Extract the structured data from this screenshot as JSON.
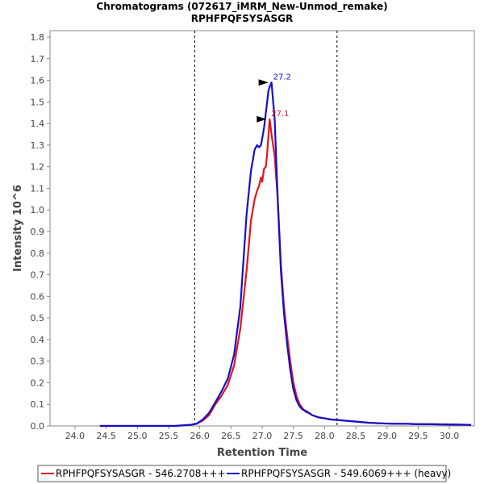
{
  "chart_data": {
    "type": "line",
    "title": "Chromatograms (072617_iMRM_New-Unmod_remake)",
    "subtitle": "RPHFPQFSYSASGR",
    "xlabel": "Retention Time",
    "ylabel": "Intensity 10^6",
    "xlim": [
      23.6,
      30.4
    ],
    "ylim": [
      0,
      1.83
    ],
    "xticks": [
      "24.0",
      "24.5",
      "25.0",
      "25.5",
      "26.0",
      "26.5",
      "27.0",
      "27.5",
      "28.0",
      "28.5",
      "29.0",
      "29.5",
      "30.0"
    ],
    "yticks": [
      "0.0",
      "0.1",
      "0.2",
      "0.3",
      "0.4",
      "0.5",
      "0.6",
      "0.7",
      "0.8",
      "0.9",
      "1.0",
      "1.1",
      "1.2",
      "1.3",
      "1.4",
      "1.5",
      "1.6",
      "1.7",
      "1.8"
    ],
    "integration_bounds": [
      25.92,
      28.2
    ],
    "series": [
      {
        "name": "RPHFPQFSYSASGR - 546.2708+++",
        "color": "#e8131b",
        "peak_label": "27.1",
        "peak": [
          27.12,
          1.42
        ],
        "x": [
          24.4,
          24.8,
          25.2,
          25.6,
          25.85,
          25.95,
          26.05,
          26.15,
          26.25,
          26.35,
          26.45,
          26.55,
          26.65,
          26.75,
          26.82,
          26.88,
          26.92,
          26.95,
          26.98,
          27.0,
          27.03,
          27.06,
          27.08,
          27.1,
          27.12,
          27.15,
          27.2,
          27.25,
          27.3,
          27.35,
          27.4,
          27.45,
          27.5,
          27.55,
          27.6,
          27.65,
          27.7,
          27.75,
          27.8,
          27.85,
          27.9,
          28.0,
          28.1,
          28.3,
          28.5,
          28.7,
          28.9,
          29.1,
          29.3,
          29.5,
          29.7,
          29.9,
          30.1,
          30.35
        ],
        "y": [
          0.0,
          0.0,
          0.0,
          0.0,
          0.005,
          0.01,
          0.025,
          0.05,
          0.1,
          0.14,
          0.19,
          0.28,
          0.45,
          0.72,
          0.95,
          1.05,
          1.09,
          1.11,
          1.15,
          1.13,
          1.19,
          1.2,
          1.26,
          1.34,
          1.42,
          1.35,
          1.25,
          1.05,
          0.75,
          0.55,
          0.42,
          0.3,
          0.2,
          0.14,
          0.1,
          0.08,
          0.065,
          0.06,
          0.05,
          0.045,
          0.04,
          0.035,
          0.03,
          0.025,
          0.02,
          0.015,
          0.012,
          0.01,
          0.01,
          0.008,
          0.008,
          0.007,
          0.006,
          0.005
        ]
      },
      {
        "name": "RPHFPQFSYSASGR - 549.6069+++ (heavy)",
        "color": "#1010cc",
        "peak_label": "27.2",
        "peak": [
          27.15,
          1.59
        ],
        "x": [
          24.4,
          24.8,
          25.2,
          25.6,
          25.85,
          25.95,
          26.05,
          26.15,
          26.25,
          26.35,
          26.45,
          26.55,
          26.65,
          26.75,
          26.82,
          26.88,
          26.92,
          26.95,
          26.98,
          27.0,
          27.03,
          27.06,
          27.08,
          27.1,
          27.12,
          27.15,
          27.2,
          27.25,
          27.3,
          27.35,
          27.4,
          27.45,
          27.5,
          27.55,
          27.6,
          27.65,
          27.7,
          27.75,
          27.8,
          27.85,
          27.9,
          28.0,
          28.1,
          28.3,
          28.5,
          28.7,
          28.9,
          29.1,
          29.3,
          29.5,
          29.7,
          29.9,
          30.1,
          30.35
        ],
        "y": [
          0.0,
          0.0,
          0.0,
          0.0,
          0.005,
          0.01,
          0.03,
          0.06,
          0.11,
          0.16,
          0.22,
          0.33,
          0.55,
          0.98,
          1.18,
          1.28,
          1.3,
          1.29,
          1.3,
          1.33,
          1.38,
          1.45,
          1.5,
          1.55,
          1.57,
          1.59,
          1.42,
          1.05,
          0.72,
          0.52,
          0.38,
          0.26,
          0.17,
          0.12,
          0.09,
          0.075,
          0.07,
          0.06,
          0.05,
          0.045,
          0.04,
          0.035,
          0.03,
          0.025,
          0.02,
          0.015,
          0.012,
          0.01,
          0.01,
          0.008,
          0.008,
          0.007,
          0.006,
          0.005
        ]
      }
    ]
  }
}
